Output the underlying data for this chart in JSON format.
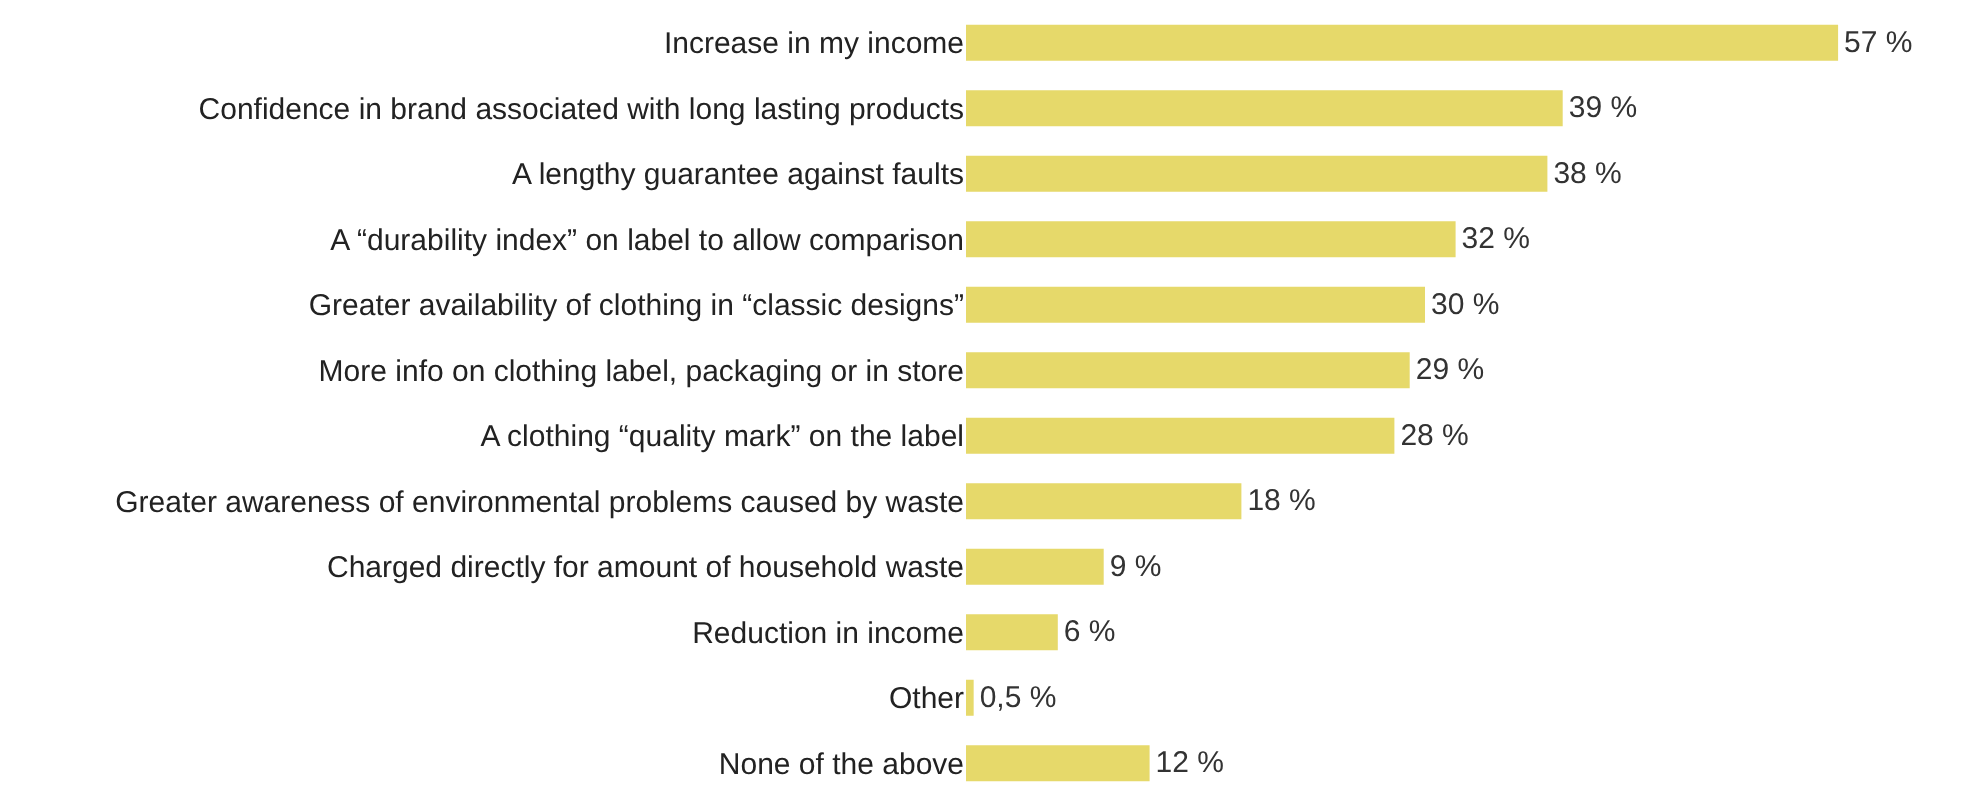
{
  "chart_data": {
    "type": "bar",
    "orientation": "horizontal",
    "categories": [
      "Increase in my income",
      "Confidence in brand associated with long lasting products",
      "A lengthy guarantee against faults",
      "A “durability index” on label to allow comparison",
      "Greater availability of clothing in “classic designs”",
      "More info on clothing label, packaging or in store",
      "A clothing “quality mark” on the label",
      "Greater awareness of environmental problems caused by waste",
      "Charged directly for amount of household waste",
      "Reduction in income",
      "Other",
      "None of the above"
    ],
    "values": [
      57,
      39,
      38,
      32,
      30,
      29,
      28,
      18,
      9,
      6,
      0.5,
      12
    ],
    "value_labels": [
      "57 %",
      "39 %",
      "38 %",
      "32 %",
      "30 %",
      "29 %",
      "28 %",
      "18 %",
      "9 %",
      "6 %",
      "0,5 %",
      "12 %"
    ],
    "color": "#e6d96a",
    "tick_labels": "y"
  }
}
